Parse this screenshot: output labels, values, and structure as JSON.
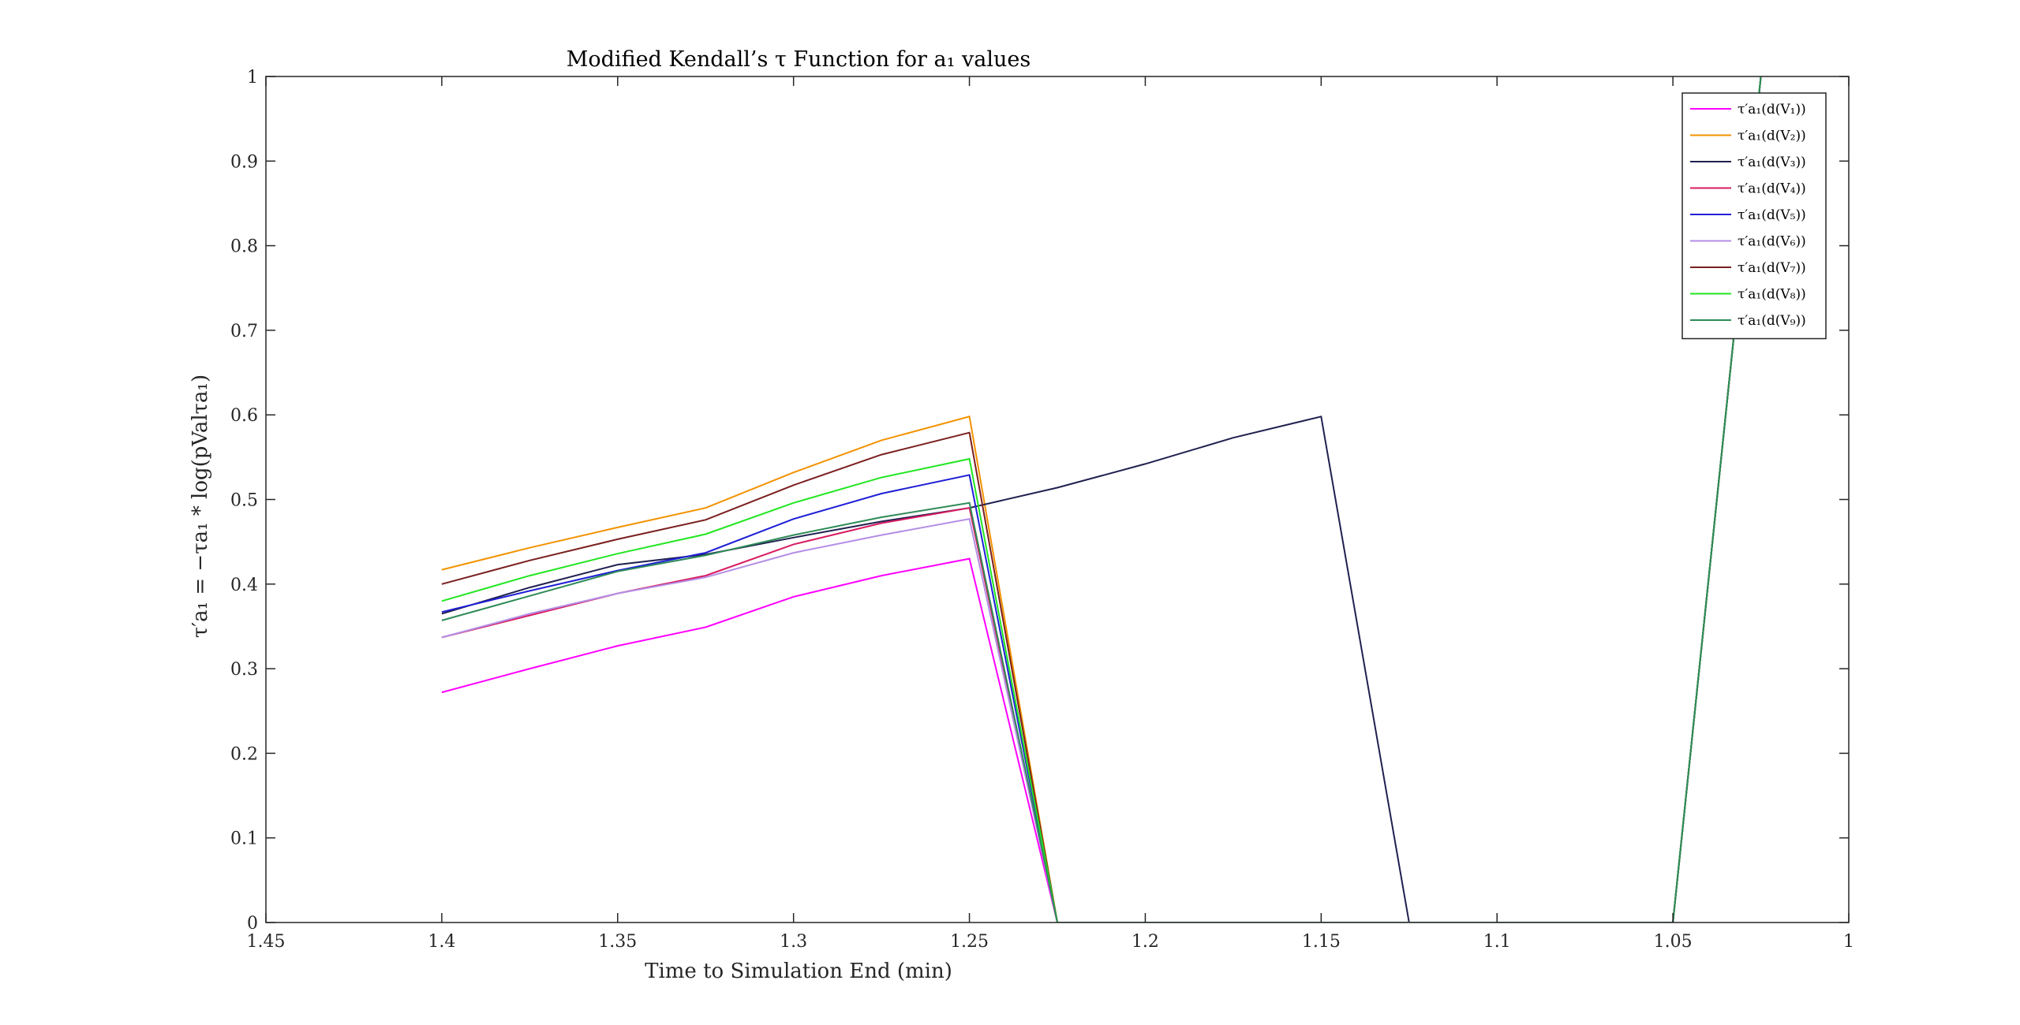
{
  "chart_data": {
    "type": "line",
    "title": "Modified Kendall’s τ Function for a₁ values",
    "xlabel": "Time to Simulation End (min)",
    "ylabel": "τ′a₁ = −τa₁ * log(pValτa₁)",
    "xlim": [
      1.45,
      1
    ],
    "ylim": [
      0,
      1
    ],
    "x_reversed": true,
    "grid": false,
    "legend_position": "top-right",
    "xticks": [
      "1.45",
      "1.4",
      "1.35",
      "1.3",
      "1.25",
      "1.2",
      "1.15",
      "1.1",
      "1.05",
      "1"
    ],
    "yticks": [
      "0",
      "0.1",
      "0.2",
      "0.3",
      "0.4",
      "0.5",
      "0.6",
      "0.7",
      "0.8",
      "0.9",
      "1"
    ],
    "xtick_values": [
      1.45,
      1.4,
      1.35,
      1.3,
      1.25,
      1.2,
      1.15,
      1.1,
      1.05,
      1.0
    ],
    "ytick_values": [
      0,
      0.1,
      0.2,
      0.3,
      0.4,
      0.5,
      0.6,
      0.7,
      0.8,
      0.9,
      1.0
    ],
    "series": [
      {
        "name": "τ′a₁(d(V₁))",
        "color": "#ff00ff",
        "x": [
          1.4,
          1.375,
          1.35,
          1.325,
          1.3,
          1.275,
          1.25,
          1.225,
          1.2,
          1.175,
          1.15,
          1.125,
          1.1,
          1.075,
          1.05,
          1.025
        ],
        "y": [
          0.272,
          0.3,
          0.327,
          0.349,
          0.385,
          0.41,
          0.43,
          0,
          0,
          0,
          0,
          0,
          0,
          0,
          0,
          1.0
        ]
      },
      {
        "name": "τ′a₁(d(V₂))",
        "color": "#f39200",
        "x": [
          1.4,
          1.375,
          1.35,
          1.325,
          1.3,
          1.275,
          1.25,
          1.225,
          1.2,
          1.175,
          1.15,
          1.125,
          1.1,
          1.075,
          1.05,
          1.025
        ],
        "y": [
          0.417,
          0.443,
          0.467,
          0.49,
          0.532,
          0.57,
          0.598,
          0,
          0,
          0,
          0,
          0,
          0,
          0,
          0,
          1.0
        ]
      },
      {
        "name": "τ′a₁(d(V₃))",
        "color": "#202050",
        "x": [
          1.4,
          1.375,
          1.35,
          1.325,
          1.3,
          1.275,
          1.25,
          1.225,
          1.2,
          1.175,
          1.15,
          1.125,
          1.1,
          1.075,
          1.05,
          1.025
        ],
        "y": [
          0.365,
          0.396,
          0.423,
          0.435,
          0.455,
          0.474,
          0.49,
          0.514,
          0.542,
          0.573,
          0.598,
          0,
          0,
          0,
          0,
          1.0
        ]
      },
      {
        "name": "τ′a₁(d(V₄))",
        "color": "#d81b60",
        "x": [
          1.4,
          1.375,
          1.35,
          1.325,
          1.3,
          1.275,
          1.25,
          1.225,
          1.2,
          1.175,
          1.15,
          1.125,
          1.1,
          1.075,
          1.05,
          1.025
        ],
        "y": [
          0.337,
          0.363,
          0.389,
          0.41,
          0.447,
          0.472,
          0.49,
          0,
          0,
          0,
          0,
          0,
          0,
          0,
          0,
          1.0
        ]
      },
      {
        "name": "τ′a₁(d(V₅))",
        "color": "#1f1fd6",
        "x": [
          1.4,
          1.375,
          1.35,
          1.325,
          1.3,
          1.275,
          1.25,
          1.225,
          1.2,
          1.175,
          1.15,
          1.125,
          1.1,
          1.075,
          1.05,
          1.025
        ],
        "y": [
          0.367,
          0.392,
          0.416,
          0.437,
          0.477,
          0.507,
          0.529,
          0,
          0,
          0,
          0,
          0,
          0,
          0,
          0,
          1.0
        ]
      },
      {
        "name": "τ′a₁(d(V₆))",
        "color": "#b48ee6",
        "x": [
          1.4,
          1.375,
          1.35,
          1.325,
          1.3,
          1.275,
          1.25,
          1.225,
          1.2,
          1.175,
          1.15,
          1.125,
          1.1,
          1.075,
          1.05,
          1.025
        ],
        "y": [
          0.337,
          0.365,
          0.389,
          0.408,
          0.437,
          0.458,
          0.477,
          0,
          0,
          0,
          0,
          0,
          0,
          0,
          0,
          1.0
        ]
      },
      {
        "name": "τ′a₁(d(V₇))",
        "color": "#7a1f1f",
        "x": [
          1.4,
          1.375,
          1.35,
          1.325,
          1.3,
          1.275,
          1.25,
          1.225,
          1.2,
          1.175,
          1.15,
          1.125,
          1.1,
          1.075,
          1.05,
          1.025
        ],
        "y": [
          0.4,
          0.428,
          0.453,
          0.476,
          0.517,
          0.553,
          0.579,
          0,
          0,
          0,
          0,
          0,
          0,
          0,
          0,
          1.0
        ]
      },
      {
        "name": "τ′a₁(d(V₈))",
        "color": "#22e622",
        "x": [
          1.4,
          1.375,
          1.35,
          1.325,
          1.3,
          1.275,
          1.25,
          1.225,
          1.2,
          1.175,
          1.15,
          1.125,
          1.1,
          1.075,
          1.05,
          1.025
        ],
        "y": [
          0.38,
          0.41,
          0.436,
          0.459,
          0.496,
          0.526,
          0.548,
          0,
          0,
          0,
          0,
          0,
          0,
          0,
          0,
          1.0
        ]
      },
      {
        "name": "τ′a₁(d(V₉))",
        "color": "#2e8b57",
        "x": [
          1.4,
          1.375,
          1.35,
          1.325,
          1.3,
          1.275,
          1.25,
          1.225,
          1.2,
          1.175,
          1.15,
          1.125,
          1.1,
          1.075,
          1.05,
          1.025
        ],
        "y": [
          0.357,
          0.386,
          0.415,
          0.434,
          0.458,
          0.479,
          0.496,
          0,
          0,
          0,
          0,
          0,
          0,
          0,
          0,
          1.0
        ]
      }
    ]
  }
}
